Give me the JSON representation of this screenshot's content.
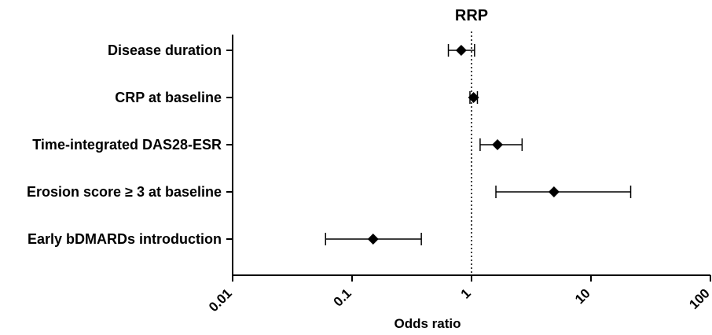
{
  "chart_data": {
    "type": "forest",
    "title": "RRP",
    "xlabel": "Odds ratio",
    "ylabel": "",
    "x_scale": "log",
    "xlim": [
      0.01,
      100
    ],
    "x_ticks": [
      0.01,
      0.1,
      1,
      10,
      100
    ],
    "x_tick_labels": [
      "0.01",
      "0.1",
      "1",
      "10",
      "100"
    ],
    "reference_line": 1,
    "categories": [
      "Disease duration",
      "CRP at baseline",
      "Time-integrated DAS28-ESR",
      "Erosion score  ≥ 3 at baseline",
      "Early bDMARDs introduction"
    ],
    "estimates": [
      0.82,
      1.04,
      1.65,
      4.9,
      0.15
    ],
    "ci_lower": [
      0.64,
      0.97,
      1.18,
      1.6,
      0.06
    ],
    "ci_upper": [
      1.06,
      1.12,
      2.65,
      21.5,
      0.38
    ]
  }
}
